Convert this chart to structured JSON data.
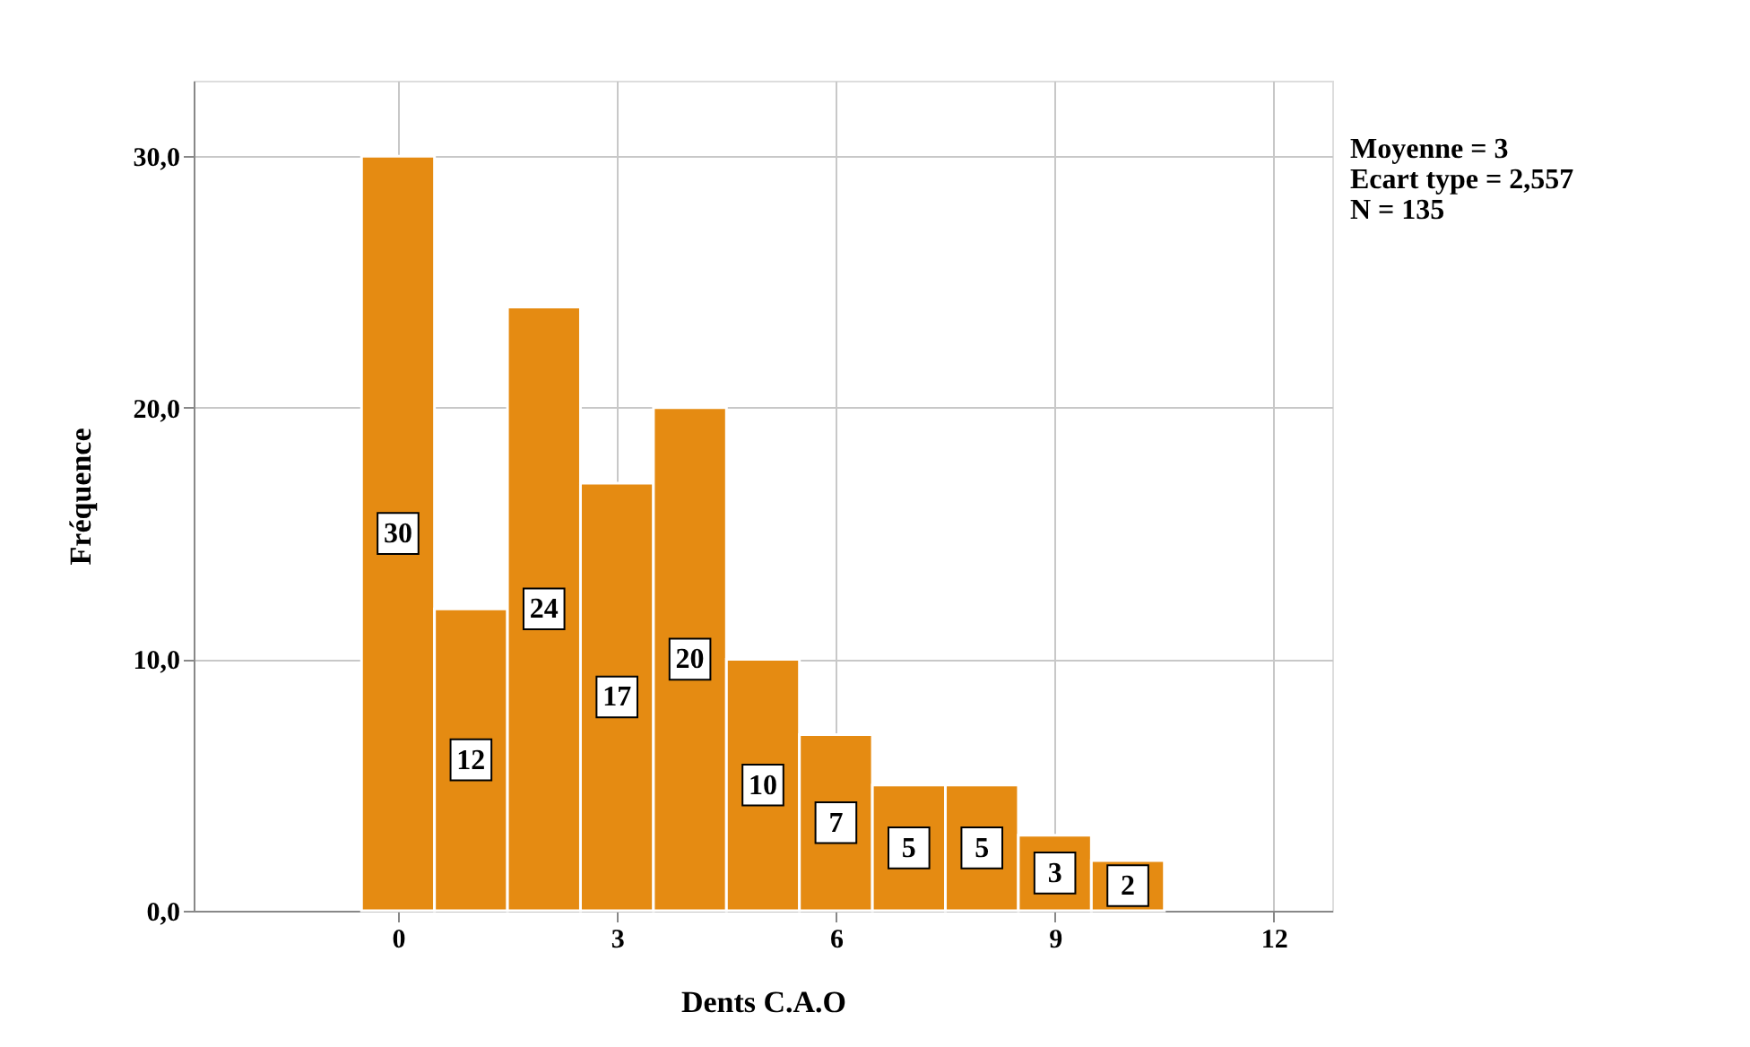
{
  "chart_data": {
    "type": "histogram",
    "xlabel": "Dents C.A.O",
    "ylabel": "Fréquence",
    "bins": [
      -0.5,
      0.5,
      1.5,
      2.5,
      3.5,
      4.5,
      5.5,
      6.5,
      7.5,
      8.5,
      9.5,
      10.5
    ],
    "values": [
      30,
      12,
      24,
      17,
      20,
      10,
      7,
      5,
      5,
      3,
      2
    ],
    "color": "#e58b12",
    "xlim": [
      -2.8,
      12.8
    ],
    "xticks": [
      0,
      3,
      6,
      9,
      12
    ],
    "ylim": [
      0,
      33
    ],
    "yticks": [
      {
        "value": 0,
        "label": "0,0"
      },
      {
        "value": 10,
        "label": "10,0"
      },
      {
        "value": 20,
        "label": "20,0"
      },
      {
        "value": 30,
        "label": "30,0"
      }
    ],
    "grid": true,
    "data_labels": true,
    "annotations": [
      "Moyenne = 3",
      "Ecart type = 2,557",
      "N = 135"
    ]
  }
}
